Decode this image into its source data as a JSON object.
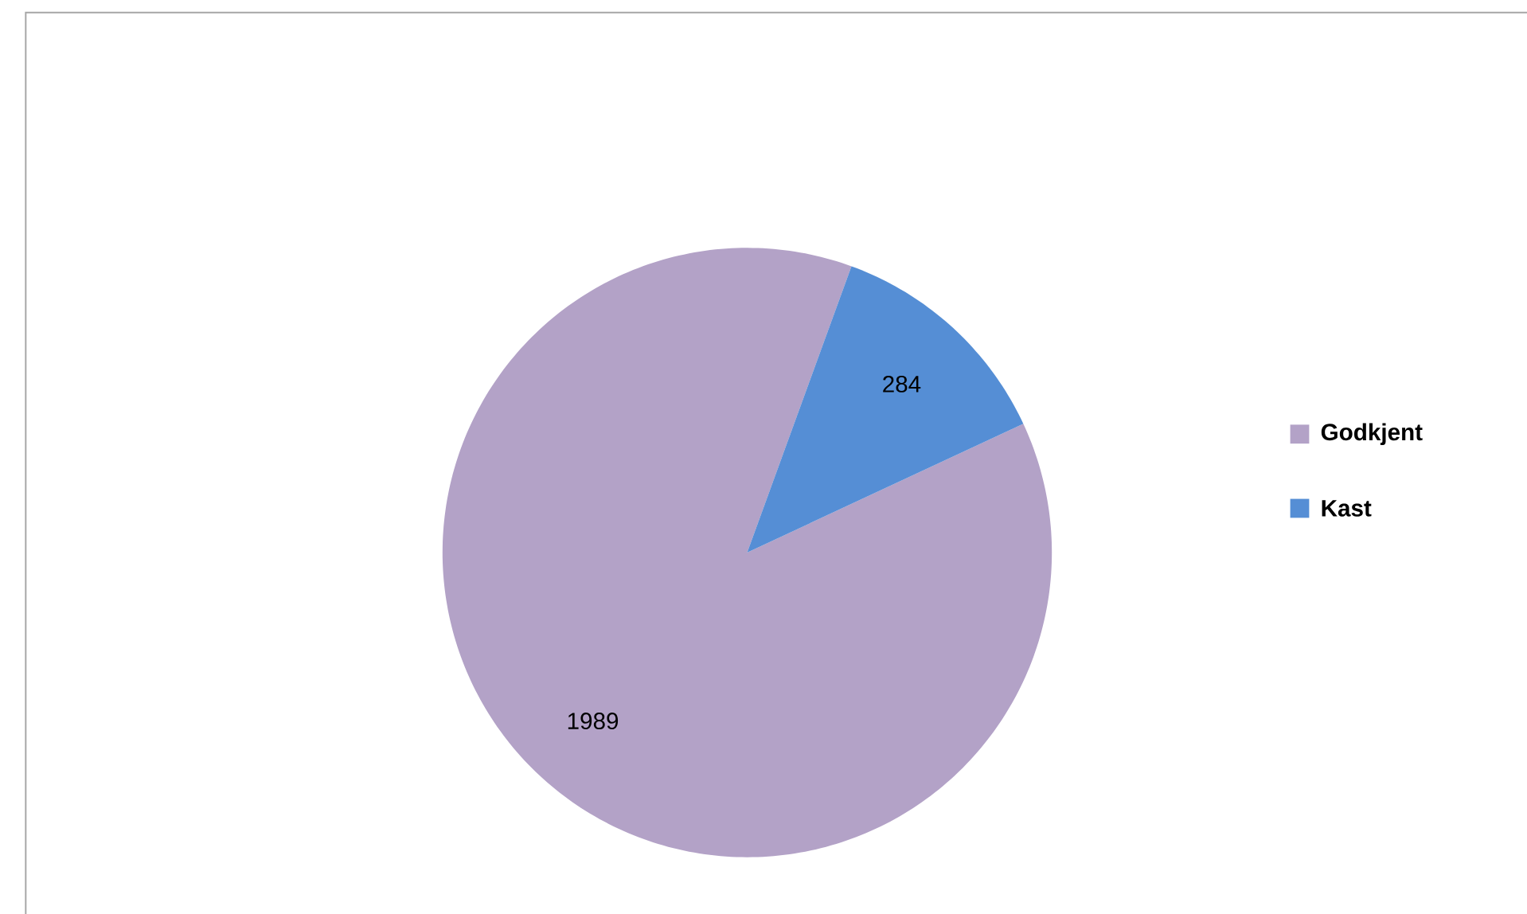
{
  "chart_data": {
    "type": "pie",
    "categories": [
      "Godkjent",
      "Kast"
    ],
    "values": [
      1989,
      284
    ],
    "colors": [
      "#b3a2c7",
      "#558ed5"
    ],
    "data_labels": true,
    "legend": "right"
  }
}
